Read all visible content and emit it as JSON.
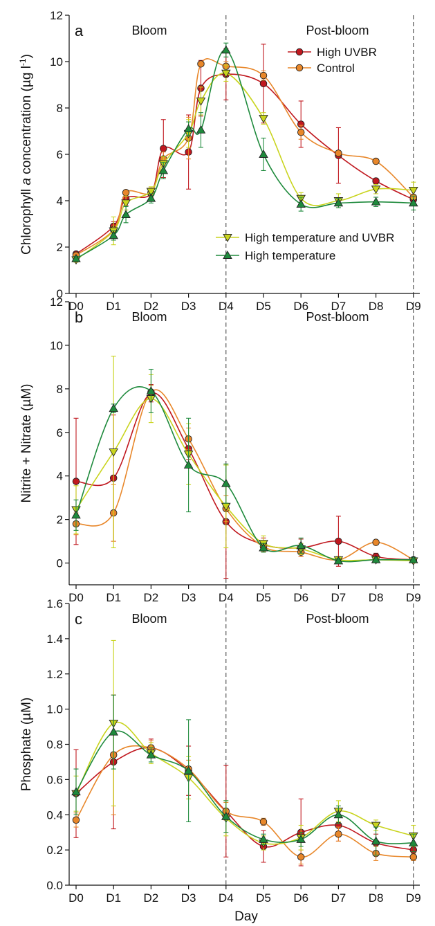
{
  "colors": {
    "high_uvbr": "#c0181f",
    "control": "#e8872a",
    "high_temp_uvbr": "#c9d41e",
    "high_temp": "#1e8a3c"
  },
  "shared_x_label": "Day",
  "chart_data": [
    {
      "type": "line",
      "panel": "a",
      "ylabel": "Chlorophyll a concentration (µg l-1)",
      "ylabel_parts": {
        "prefix": "Chlorophyll ",
        "italic": "a",
        "middle": " concentration (µg l",
        "sup": "-1",
        "suffix": ")"
      },
      "xlabel": "",
      "ylim": [
        0,
        12
      ],
      "yticks": [
        "0",
        "2",
        "4",
        "6",
        "8",
        "10",
        "12"
      ],
      "ytick_values": [
        0,
        2,
        4,
        6,
        8,
        10,
        12
      ],
      "categories": [
        "D0",
        "D1",
        "D2",
        "D3",
        "D4",
        "D5",
        "D6",
        "D7",
        "D8",
        "D9"
      ],
      "regions": [
        "Bloom",
        "Post-bloom"
      ],
      "vlines": [
        4,
        9
      ],
      "legend": [
        {
          "group": "upper",
          "name": "High UVBR",
          "color": "#c0181f",
          "marker": "circle"
        },
        {
          "group": "upper",
          "name": "Control",
          "color": "#e8872a",
          "marker": "circle"
        },
        {
          "group": "lower",
          "name": "High temperature and UVBR",
          "color": "#c9d41e",
          "marker": "triangle-down"
        },
        {
          "group": "lower",
          "name": "High temperature",
          "color": "#1e8a3c",
          "marker": "triangle-up"
        }
      ],
      "series": [
        {
          "name": "High UVBR",
          "color": "#c0181f",
          "marker": "circle",
          "x": [
            0,
            1,
            1.33,
            2,
            2.33,
            3,
            3.33,
            4,
            5,
            6,
            7,
            8,
            9
          ],
          "y": [
            1.7,
            2.9,
            4.1,
            4.3,
            6.25,
            6.1,
            8.85,
            9.45,
            9.05,
            7.3,
            5.95,
            4.85,
            4.05
          ],
          "err": [
            0.05,
            0.2,
            0.3,
            0.2,
            1.25,
            1.6,
            1.2,
            1.1,
            1.7,
            1.0,
            1.2,
            0.12,
            0.1
          ]
        },
        {
          "name": "Control",
          "color": "#e8872a",
          "marker": "circle",
          "x": [
            0,
            1,
            1.33,
            2,
            2.33,
            3,
            3.33,
            4,
            5,
            6,
            7,
            8,
            9
          ],
          "y": [
            1.65,
            2.75,
            4.35,
            4.35,
            5.8,
            6.7,
            9.9,
            9.8,
            9.4,
            6.95,
            6.05,
            5.7,
            4.15
          ],
          "err": [
            0.05,
            0.15,
            0.1,
            0.2,
            0.3,
            0.9,
            0.1,
            0.2,
            0.2,
            0.3,
            0.1,
            0.1,
            0.1
          ]
        },
        {
          "name": "High temperature and UVBR",
          "color": "#c9d41e",
          "marker": "triangle-down",
          "x": [
            0,
            1,
            1.33,
            2,
            2.33,
            3,
            3.33,
            4,
            5,
            6,
            7,
            8,
            9
          ],
          "y": [
            1.45,
            2.7,
            3.9,
            4.4,
            5.6,
            6.9,
            8.3,
            9.5,
            7.55,
            4.1,
            4.0,
            4.5,
            4.45
          ],
          "err": [
            0.1,
            0.6,
            0.3,
            0.2,
            0.3,
            0.6,
            0.6,
            0.35,
            0.25,
            0.25,
            0.3,
            0.2,
            0.35
          ]
        },
        {
          "name": "High temperature",
          "color": "#1e8a3c",
          "marker": "triangle-up",
          "x": [
            0,
            1,
            1.33,
            2,
            2.33,
            3,
            3.33,
            4,
            5,
            6,
            7,
            8,
            9
          ],
          "y": [
            1.5,
            2.5,
            3.4,
            4.1,
            5.3,
            7.1,
            7.05,
            10.5,
            6.0,
            3.85,
            3.9,
            3.95,
            3.9
          ],
          "err": [
            0.1,
            0.2,
            0.35,
            0.2,
            0.35,
            0.3,
            0.75,
            0.3,
            0.7,
            0.3,
            0.2,
            0.2,
            0.3
          ]
        }
      ]
    },
    {
      "type": "line",
      "panel": "b",
      "ylabel": "Nitrite + Nitrate (µM)",
      "xlabel": "",
      "ylim": [
        -1,
        12
      ],
      "yticks": [
        "0",
        "2",
        "4",
        "6",
        "8",
        "10",
        "12"
      ],
      "ytick_values": [
        0,
        2,
        4,
        6,
        8,
        10,
        12
      ],
      "categories": [
        "D0",
        "D1",
        "D2",
        "D3",
        "D4",
        "D5",
        "D6",
        "D7",
        "D8",
        "D9"
      ],
      "regions": [
        "Bloom",
        "Post-bloom"
      ],
      "vlines": [
        4,
        9
      ],
      "series": [
        {
          "name": "High UVBR",
          "color": "#c0181f",
          "marker": "circle",
          "x": [
            0,
            1,
            2,
            3,
            4,
            5,
            6,
            7,
            8,
            9
          ],
          "y": [
            3.75,
            3.9,
            7.8,
            5.25,
            1.9,
            0.85,
            0.7,
            1.0,
            0.3,
            0.15
          ],
          "err": [
            2.9,
            2.9,
            0.4,
            0.5,
            2.6,
            0.3,
            0.4,
            1.15,
            0.15,
            0.1
          ]
        },
        {
          "name": "Control",
          "color": "#e8872a",
          "marker": "circle",
          "x": [
            0,
            1,
            2,
            3,
            4,
            5,
            6,
            7,
            8,
            9
          ],
          "y": [
            1.8,
            2.3,
            7.85,
            5.7,
            2.5,
            0.75,
            0.5,
            0.15,
            0.95,
            0.15
          ],
          "err": [
            0.5,
            1.3,
            0.3,
            0.5,
            0.6,
            0.25,
            0.2,
            0.1,
            0.1,
            0.1
          ]
        },
        {
          "name": "High temperature and UVBR",
          "color": "#c9d41e",
          "marker": "triangle-down",
          "x": [
            0,
            1,
            2,
            3,
            4,
            5,
            6,
            7,
            8,
            9
          ],
          "y": [
            2.45,
            5.1,
            7.55,
            5.0,
            2.6,
            0.9,
            0.65,
            0.15,
            0.15,
            0.1
          ],
          "err": [
            1.1,
            4.4,
            1.1,
            1.4,
            1.9,
            0.35,
            0.25,
            0.15,
            0.1,
            0.1
          ]
        },
        {
          "name": "High temperature",
          "color": "#1e8a3c",
          "marker": "triangle-up",
          "x": [
            0,
            1,
            2,
            3,
            4,
            5,
            6,
            7,
            8,
            9
          ],
          "y": [
            2.2,
            7.1,
            7.9,
            4.5,
            3.65,
            0.7,
            0.8,
            0.1,
            0.15,
            0.15
          ],
          "err": [
            0.7,
            0.2,
            1.0,
            2.15,
            0.9,
            0.2,
            0.35,
            0.1,
            0.1,
            0.1
          ]
        }
      ]
    },
    {
      "type": "line",
      "panel": "c",
      "ylabel": "Phosphate (µM)",
      "xlabel": "Day",
      "ylim": [
        0,
        1.6
      ],
      "yticks": [
        "0.0",
        "0.2",
        "0.4",
        "0.6",
        "0.8",
        "1.0",
        "1.2",
        "1.4",
        "1.6"
      ],
      "ytick_values": [
        0,
        0.2,
        0.4,
        0.6,
        0.8,
        1.0,
        1.2,
        1.4,
        1.6
      ],
      "categories": [
        "D0",
        "D1",
        "D2",
        "D3",
        "D4",
        "D5",
        "D6",
        "D7",
        "D8",
        "D9"
      ],
      "regions": [
        "Bloom",
        "Post-bloom"
      ],
      "vlines": [
        4,
        9
      ],
      "series": [
        {
          "name": "High UVBR",
          "color": "#c0181f",
          "marker": "circle",
          "x": [
            0,
            1,
            2,
            3,
            4,
            5,
            6,
            7,
            8,
            9
          ],
          "y": [
            0.52,
            0.7,
            0.78,
            0.65,
            0.42,
            0.22,
            0.3,
            0.34,
            0.24,
            0.2
          ],
          "err": [
            0.25,
            0.38,
            0.05,
            0.14,
            0.26,
            0.09,
            0.19,
            0.09,
            0.05,
            0.04
          ]
        },
        {
          "name": "Control",
          "color": "#e8872a",
          "marker": "circle",
          "x": [
            0,
            1,
            2,
            3,
            4,
            5,
            6,
            7,
            8,
            9
          ],
          "y": [
            0.37,
            0.74,
            0.78,
            0.66,
            0.42,
            0.36,
            0.16,
            0.29,
            0.18,
            0.16
          ],
          "err": [
            0.04,
            0.34,
            0.04,
            0.05,
            0.05,
            0.02,
            0.04,
            0.04,
            0.04,
            0.02
          ]
        },
        {
          "name": "High temperature and UVBR",
          "color": "#c9d41e",
          "marker": "triangle-down",
          "x": [
            0,
            1,
            2,
            3,
            4,
            5,
            6,
            7,
            8,
            9
          ],
          "y": [
            0.52,
            0.92,
            0.75,
            0.61,
            0.38,
            0.24,
            0.27,
            0.42,
            0.34,
            0.28
          ],
          "err": [
            0.1,
            0.47,
            0.06,
            0.12,
            0.1,
            0.04,
            0.07,
            0.06,
            0.03,
            0.06
          ]
        },
        {
          "name": "High temperature",
          "color": "#1e8a3c",
          "marker": "triangle-up",
          "x": [
            0,
            1,
            2,
            3,
            4,
            5,
            6,
            7,
            8,
            9
          ],
          "y": [
            0.53,
            0.87,
            0.74,
            0.65,
            0.39,
            0.26,
            0.26,
            0.4,
            0.25,
            0.24
          ],
          "err": [
            0.13,
            0.21,
            0.04,
            0.29,
            0.09,
            0.03,
            0.04,
            0.05,
            0.08,
            0.05
          ]
        }
      ]
    }
  ]
}
